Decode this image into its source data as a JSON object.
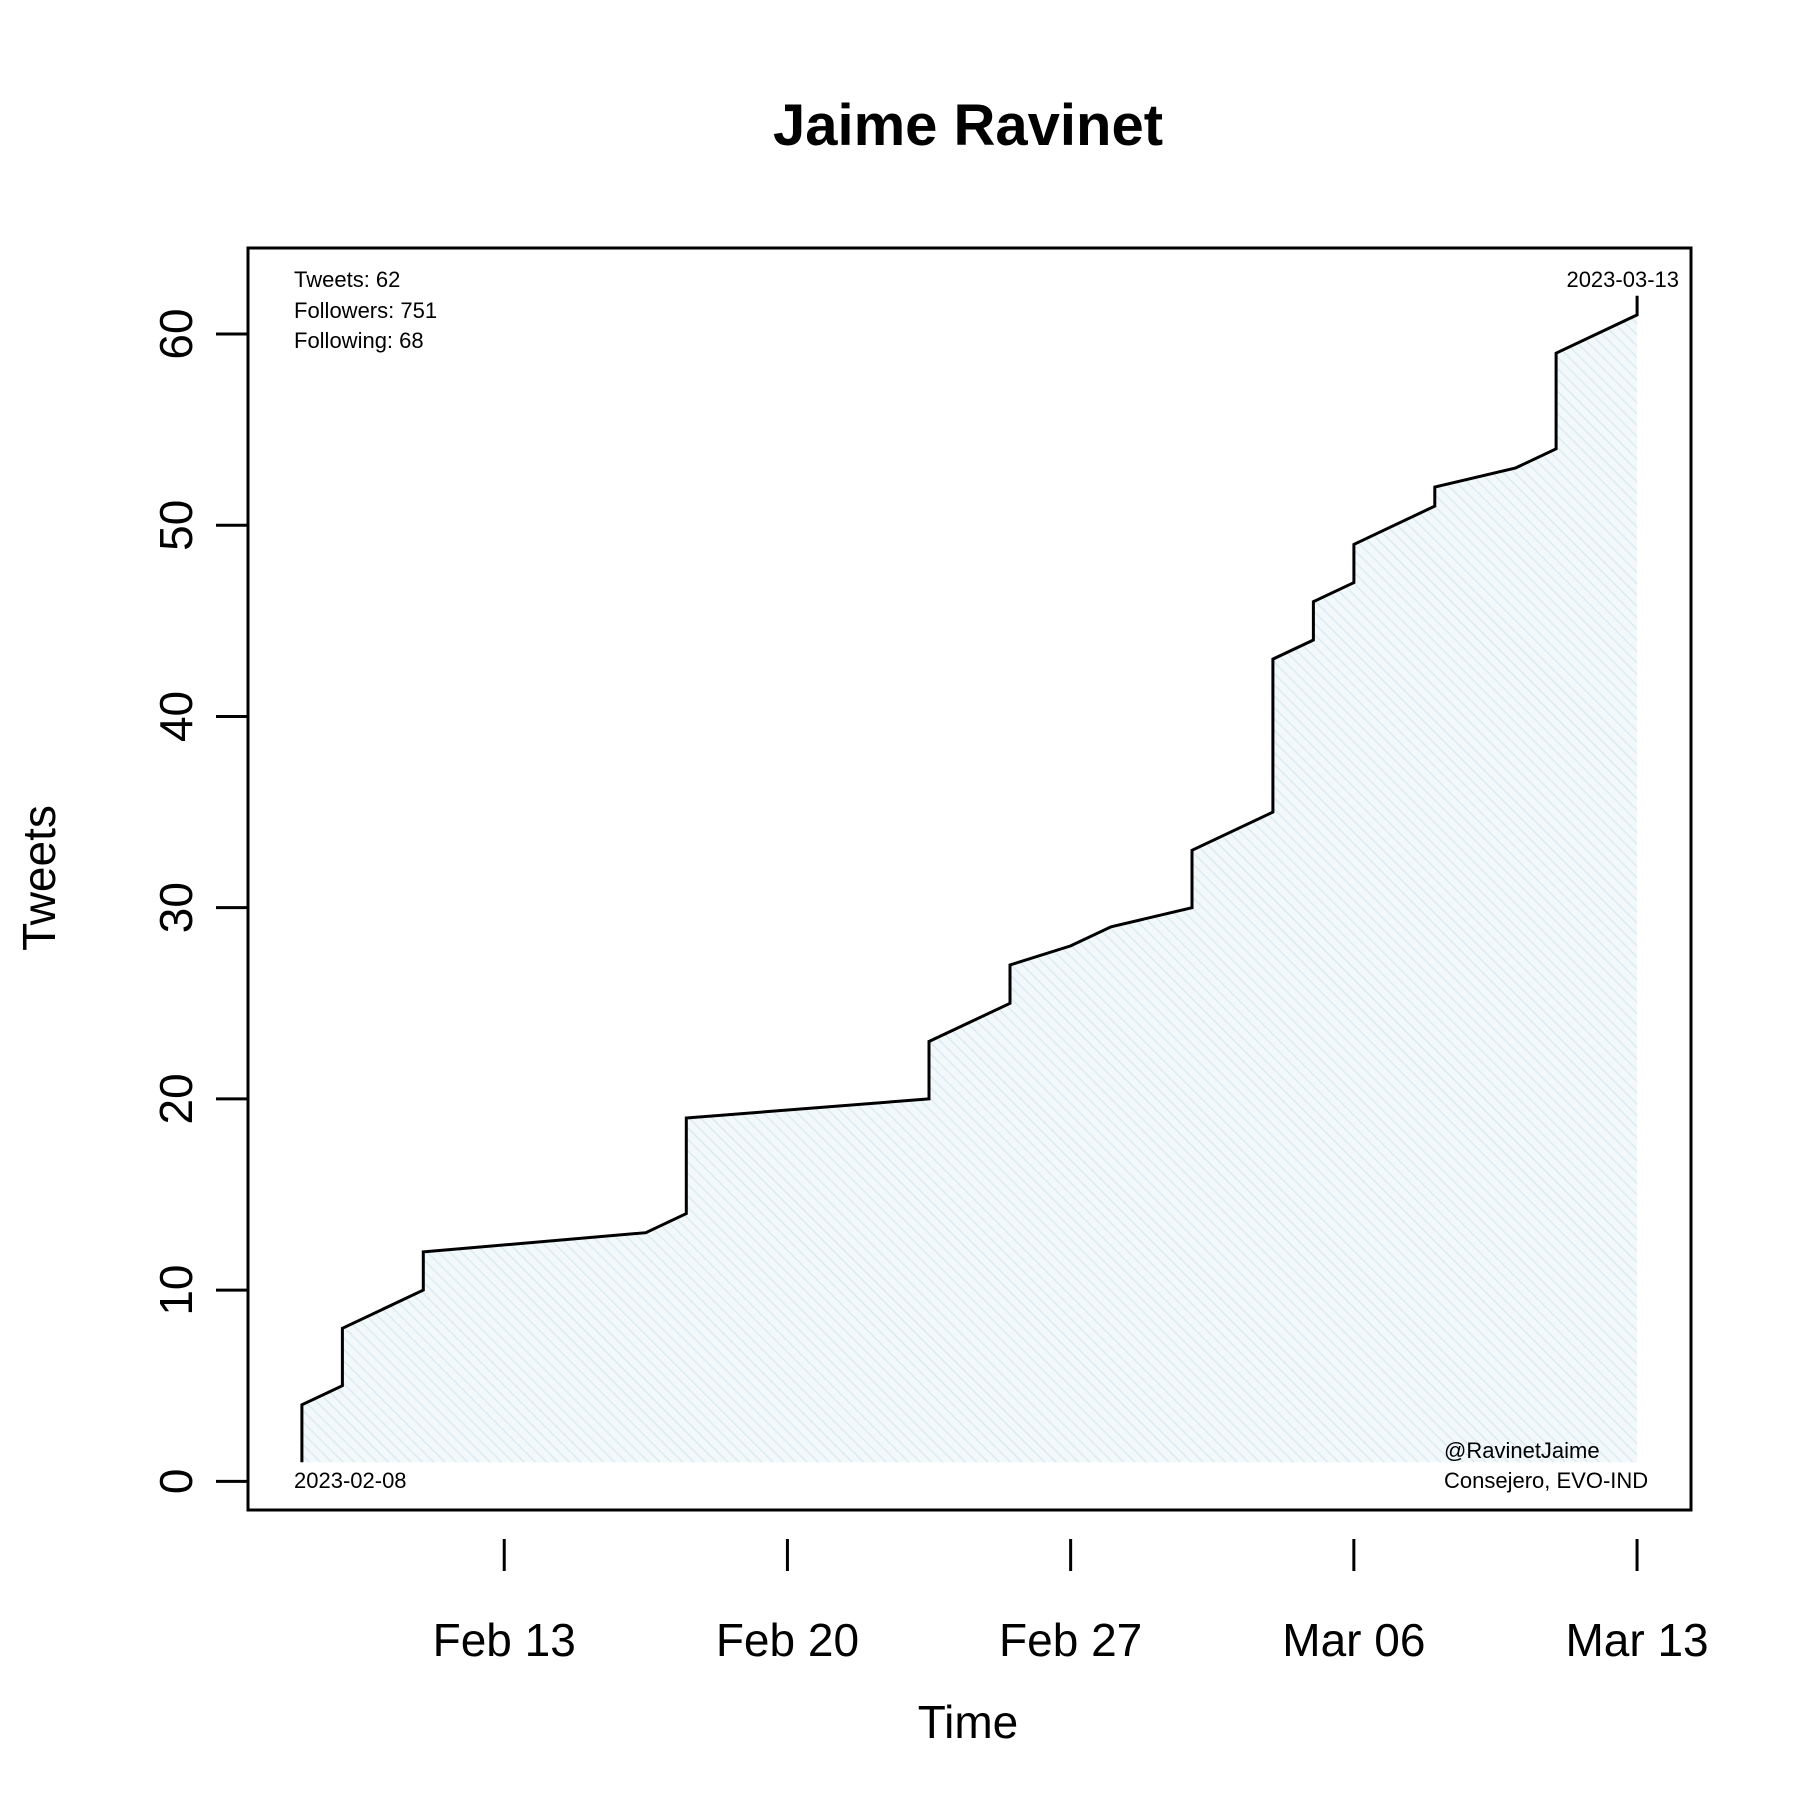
{
  "chart_data": {
    "type": "area",
    "title": "Jaime Ravinet",
    "xlabel": "Time",
    "ylabel": "Tweets",
    "x_ticks": [
      "2023-02-13",
      "2023-02-20",
      "2023-02-27",
      "2023-03-06",
      "2023-03-13"
    ],
    "x_tick_labels": [
      "Feb 13",
      "Feb 20",
      "Feb 27",
      "Mar 06",
      "Mar 13"
    ],
    "y_ticks": [
      0,
      10,
      20,
      30,
      40,
      50,
      60
    ],
    "xlim": [
      "2023-02-06T16:00",
      "2023-03-14T08:00"
    ],
    "ylim": [
      -1.5,
      64.5
    ],
    "grid": false,
    "series": [
      {
        "points": [
          {
            "x": "2023-02-08T00:00",
            "y": 1
          },
          {
            "x": "2023-02-08T00:00",
            "y": 4
          },
          {
            "x": "2023-02-09T00:00",
            "y": 5
          },
          {
            "x": "2023-02-09T00:00",
            "y": 8
          },
          {
            "x": "2023-02-11T00:00",
            "y": 10
          },
          {
            "x": "2023-02-11T00:00",
            "y": 12
          },
          {
            "x": "2023-02-16T12:00",
            "y": 13
          },
          {
            "x": "2023-02-17T12:00",
            "y": 14
          },
          {
            "x": "2023-02-17T12:00",
            "y": 19
          },
          {
            "x": "2023-02-23T12:00",
            "y": 20
          },
          {
            "x": "2023-02-23T12:00",
            "y": 23
          },
          {
            "x": "2023-02-25T12:00",
            "y": 25
          },
          {
            "x": "2023-02-25T12:00",
            "y": 27
          },
          {
            "x": "2023-02-27T00:00",
            "y": 28
          },
          {
            "x": "2023-02-28T00:00",
            "y": 29
          },
          {
            "x": "2023-03-02T00:00",
            "y": 30
          },
          {
            "x": "2023-03-02T00:00",
            "y": 33
          },
          {
            "x": "2023-03-04T00:00",
            "y": 35
          },
          {
            "x": "2023-03-04T00:00",
            "y": 43
          },
          {
            "x": "2023-03-05T00:00",
            "y": 44
          },
          {
            "x": "2023-03-05T00:00",
            "y": 46
          },
          {
            "x": "2023-03-06T00:00",
            "y": 47
          },
          {
            "x": "2023-03-06T00:00",
            "y": 49
          },
          {
            "x": "2023-03-08T00:00",
            "y": 51
          },
          {
            "x": "2023-03-08T00:00",
            "y": 52
          },
          {
            "x": "2023-03-10T00:00",
            "y": 53
          },
          {
            "x": "2023-03-11T00:00",
            "y": 54
          },
          {
            "x": "2023-03-11T00:00",
            "y": 59
          },
          {
            "x": "2023-03-13T00:00",
            "y": 61
          },
          {
            "x": "2023-03-13T00:00",
            "y": 62
          }
        ]
      }
    ],
    "fill_color": "#e6f3f8",
    "line_color": "#000000",
    "annotations": {
      "stats": [
        "Tweets: 62",
        "Followers: 751",
        "Following: 68"
      ],
      "start_date": "2023-02-08",
      "end_date": "2023-03-13",
      "handle": "@RavinetJaime",
      "bio": "Consejero, EVO-IND"
    }
  }
}
